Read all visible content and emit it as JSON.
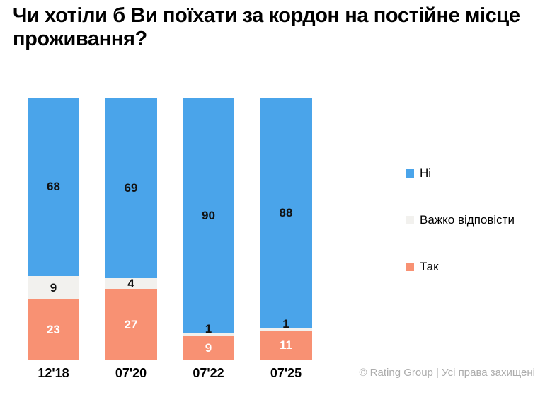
{
  "title": "Чи хотіли б Ви поїхати за кордон на постійне місце проживання?",
  "attribution": "© Rating Group | Усі права захищені",
  "chart_data": {
    "type": "bar",
    "stacked": true,
    "orientation": "vertical",
    "unit": "percent",
    "title": "Чи хотіли б Ви поїхати за кордон на постійне місце проживання?",
    "categories": [
      "12'18",
      "07'20",
      "07'22",
      "07'25"
    ],
    "series": [
      {
        "name": "Ні",
        "color": "#4AA4EA",
        "label_color": "#111111",
        "values": [
          68,
          69,
          90,
          88
        ]
      },
      {
        "name": "Важко відповісти",
        "color": "#F2F1EE",
        "label_color": "#111111",
        "values": [
          9,
          4,
          1,
          1
        ]
      },
      {
        "name": "Так",
        "color": "#F89173",
        "label_color": "#FFFFFF",
        "values": [
          23,
          27,
          9,
          11
        ]
      }
    ],
    "legend": [
      "Ні",
      "Важко відповісти",
      "Так"
    ],
    "legend_position": "right",
    "ylim": [
      0,
      100
    ],
    "grid": false,
    "axes_visible": false
  }
}
